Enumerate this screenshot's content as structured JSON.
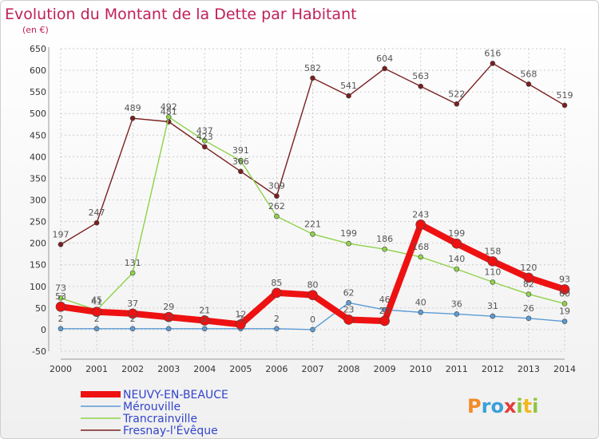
{
  "title": "Evolution du Montant de la Dette par Habitant",
  "subtitle": "(en €)",
  "logo": "Proxiti",
  "chart_data": {
    "type": "line",
    "x": [
      2000,
      2001,
      2002,
      2003,
      2004,
      2005,
      2006,
      2007,
      2008,
      2009,
      2010,
      2011,
      2012,
      2013,
      2014
    ],
    "ylim": [
      -50,
      650
    ],
    "yticks": [
      -50,
      0,
      50,
      100,
      150,
      200,
      250,
      300,
      350,
      400,
      450,
      500,
      550,
      600,
      650
    ],
    "grid": true,
    "legend_position": "bottom-left",
    "series": [
      {
        "name": "Fresnay-l'Évêque",
        "color": "#7a1f1f",
        "values": [
          197,
          247,
          489,
          481,
          423,
          366,
          309,
          582,
          541,
          604,
          563,
          522,
          616,
          568,
          519
        ]
      },
      {
        "name": "Trancrainville",
        "color": "#8fd24a",
        "values": [
          73,
          45,
          131,
          492,
          437,
          391,
          262,
          221,
          199,
          186,
          168,
          140,
          110,
          82,
          60
        ]
      },
      {
        "name": "Mérouville",
        "color": "#5b9bd5",
        "values": [
          2,
          2,
          2,
          2,
          2,
          2,
          2,
          0,
          62,
          46,
          40,
          36,
          31,
          26,
          19
        ]
      },
      {
        "name": "NEUVY-EN-BEAUCE",
        "color": "#ee1111",
        "values": [
          53,
          41,
          37,
          29,
          21,
          12,
          85,
          80,
          23,
          20,
          243,
          199,
          158,
          120,
          93
        ]
      }
    ]
  }
}
